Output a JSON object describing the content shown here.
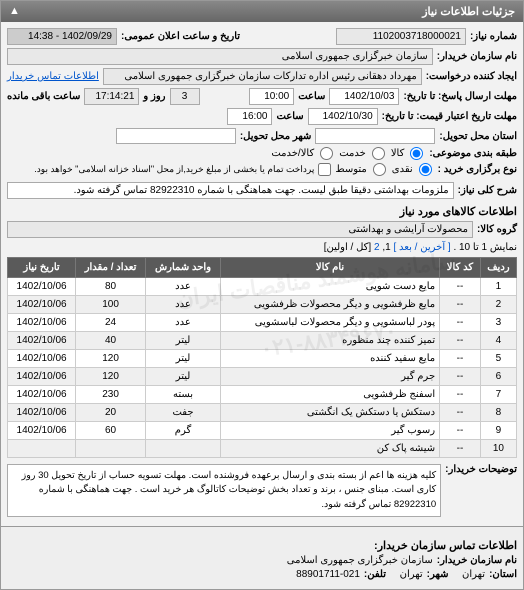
{
  "panel": {
    "title": "جزئیات اطلاعات نیاز",
    "collapse": "▲"
  },
  "fields": {
    "req_no_lbl": "شماره نیاز:",
    "req_no": "1102003718000021",
    "pub_lbl": "تاریخ و ساعت اعلان عمومی:",
    "pub_val": "1402/09/29 - 14:38",
    "buyer_lbl": "نام سازمان خریدار:",
    "buyer": "سازمان خبرگزاری جمهوری اسلامی",
    "requester_lbl": "ایجاد کننده درخواست:",
    "requester": "مهرداد دهقانی رئیس اداره تدارکات سازمان خبرگزاری جمهوری اسلامی",
    "contact_link": "اطلاعات تماس خریدار",
    "deadline_lbl": "مهلت ارسال پاسخ: تا تاریخ:",
    "deadline_date": "1402/10/03",
    "time_lbl": "ساعت",
    "deadline_time": "10:00",
    "day_lbl": "روز و",
    "days_left": "3",
    "remain_lbl": "ساعت باقی مانده",
    "remain_time": "17:14:21",
    "price_valid_lbl": "مهلت تاریخ اعتبار قیمت: تا تاریخ:",
    "price_date": "1402/10/30",
    "price_time": "16:00",
    "deliver_lbl": "استان محل تحویل:",
    "city_lbl": "شهر محل تحویل:",
    "pkg_lbl": "طبقه بندی موضوعی:",
    "pkg_r1": "کالا",
    "pkg_r2": "خدمت",
    "pkg_r3": "کالا/خدمت",
    "pay_lbl": "نوع برگزاری خرید :",
    "pay_r1": "نقدی",
    "pay_r2": "متوسط",
    "pay_note": "پرداخت تمام یا بخشی از مبلغ خرید,از محل \"اسناد خزانه اسلامی\" خواهد بود.",
    "desc_lbl": "شرح کلی نیاز:",
    "desc_val": "ملزومات بهداشتی دقیقا طبق لیست. جهت هماهنگی با شماره 82922310 تماس گرفته شود."
  },
  "goods": {
    "title": "اطلاعات کالاهای مورد نیاز",
    "group_lbl": "گروه کالا:",
    "group_val": "محصولات آرایشی و بهداشتی"
  },
  "pager": {
    "text1": "نمایش 1 تا 10 .",
    "last": "[ آخرین",
    "next": "/ بعد ]",
    "p1": "1",
    "p2": "2",
    "text2": "[کل / اولین]"
  },
  "table": {
    "headers": [
      "ردیف",
      "کد کالا",
      "نام کالا",
      "واحد شمارش",
      "تعداد / مقدار",
      "تاریخ نیاز"
    ],
    "rows": [
      [
        "1",
        "--",
        "مایع دست شویی",
        "عدد",
        "80",
        "1402/10/06"
      ],
      [
        "2",
        "--",
        "مایع ظرفشویی و دیگر محصولات ظرفشویی",
        "عدد",
        "100",
        "1402/10/06"
      ],
      [
        "3",
        "--",
        "پودر لباسشویی و دیگر محصولات لباسشویی",
        "عدد",
        "24",
        "1402/10/06"
      ],
      [
        "4",
        "--",
        "تمیز کننده چند منظوره",
        "لیتر",
        "40",
        "1402/10/06"
      ],
      [
        "5",
        "--",
        "مایع سفید کننده",
        "لیتر",
        "120",
        "1402/10/06"
      ],
      [
        "6",
        "--",
        "جرم گیر",
        "لیتر",
        "120",
        "1402/10/06"
      ],
      [
        "7",
        "--",
        "اسفنج ظرفشویی",
        "بسته",
        "230",
        "1402/10/06"
      ],
      [
        "8",
        "--",
        "دستکش یا دستکش یک انگشتی",
        "جفت",
        "20",
        "1402/10/06"
      ],
      [
        "9",
        "--",
        "رسوب گیر",
        "گرم",
        "60",
        "1402/10/06"
      ],
      [
        "10",
        "--",
        "شیشه پاک کن",
        "",
        "",
        ""
      ]
    ]
  },
  "buyer_notes": {
    "lbl": "توضیحات خریدار:",
    "val": "کلیه هزینه ها اعم از بسته بندی و ارسال برعهده فروشنده است. مهلت تسویه حساب از تاریخ تحویل  30 روز کاری است. مبنای جنس ، برند و تعداد بخش توضیحات کاتالوگ هر خرید است . جهت هماهنگی با شماره 82922310 تماس گرفته شود."
  },
  "footer": {
    "title": "اطلاعات تماس سازمان خریدار:",
    "org_lbl": "نام سازمان خریدار:",
    "org": "سازمان خبرگزاری جمهوری اسلامی",
    "prov_lbl": "استان:",
    "prov": "تهران",
    "city_lbl": "شهر:",
    "city": "تهران",
    "tel_lbl": "تلفن:",
    "tel": "88901711-021"
  },
  "watermarks": {
    "w1": "سامانه هوشمند مناقصات ایران",
    "w2": "۰۲۱-۸۸۳۴۹۶۷۰"
  }
}
